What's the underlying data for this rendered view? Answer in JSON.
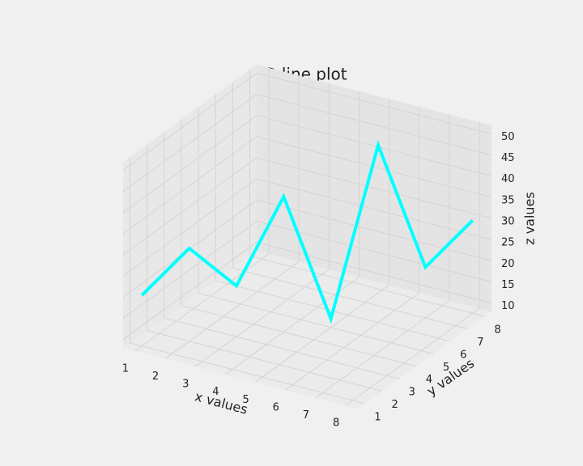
{
  "chart_data": {
    "type": "line3d",
    "title": "3D line plot",
    "xlabel": "x values",
    "ylabel": "y values",
    "zlabel": "z values",
    "x": [
      1,
      2,
      3,
      4,
      5,
      6,
      7,
      8
    ],
    "y": [
      1,
      2,
      3,
      4,
      5,
      6,
      7,
      8
    ],
    "z": [
      20,
      30,
      20,
      40,
      10,
      50,
      20,
      30
    ],
    "color": "#00ffff",
    "xlim": [
      0.6,
      8.4
    ],
    "ylim": [
      0.6,
      8.4
    ],
    "zlim": [
      8,
      52
    ],
    "xticks": [
      1,
      2,
      3,
      4,
      5,
      6,
      7,
      8
    ],
    "yticks": [
      1,
      2,
      3,
      4,
      5,
      6,
      7,
      8
    ],
    "zticks": [
      10,
      15,
      20,
      25,
      30,
      35,
      40,
      45,
      50
    ],
    "grid": true
  }
}
